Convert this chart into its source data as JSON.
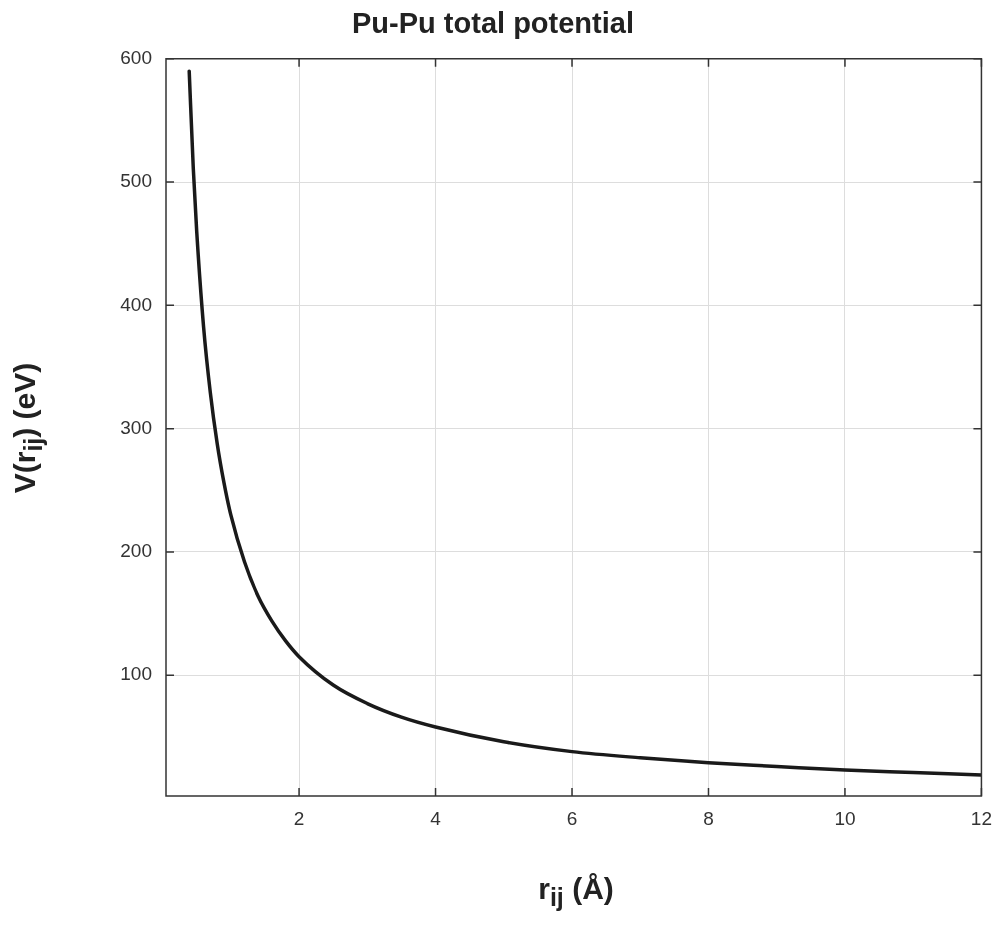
{
  "chart_data": {
    "type": "line",
    "title": "Pu-Pu total potential",
    "xlabel": "r$_{ij}$ (Å)",
    "ylabel": "V(r$_{ij}$) (eV)",
    "x": [
      0.39,
      0.45,
      0.5,
      0.6,
      0.7,
      0.8,
      0.9,
      1.0,
      1.2,
      1.4,
      1.6,
      1.8,
      2,
      2.5,
      3,
      3.5,
      4,
      5,
      6,
      7,
      8,
      9,
      10,
      11,
      12
    ],
    "series": [
      {
        "color": "#1a1a1a",
        "values": [
          590,
          511,
          460,
          383,
          329,
          288,
          256,
          230,
          192,
          164,
          144,
          128,
          115,
          92,
          77,
          66,
          58,
          46,
          38,
          33,
          29,
          26,
          23,
          21,
          19
        ]
      }
    ],
    "xlim": [
      0.05,
      12
    ],
    "xticks": [
      2,
      4,
      6,
      8,
      10,
      12
    ],
    "ylim": [
      2,
      600
    ],
    "yticks": [
      100,
      200,
      300,
      400,
      500,
      600
    ],
    "grid": true,
    "legend": false,
    "marker": "none",
    "line_style": "solid"
  }
}
